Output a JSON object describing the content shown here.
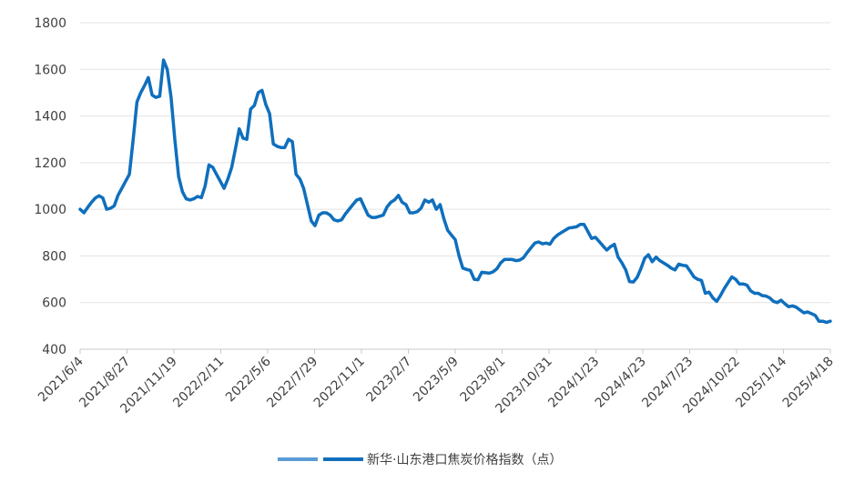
{
  "chart_data": {
    "type": "line",
    "title": "",
    "xlabel": "",
    "ylabel": "",
    "ylim": [
      400,
      1800
    ],
    "yticks": [
      "400",
      "600",
      "800",
      "1000",
      "1200",
      "1400",
      "1600",
      "1800"
    ],
    "xtick_labels": [
      "2021/6/4",
      "2021/8/27",
      "2021/11/19",
      "2022/2/11",
      "2022/5/6",
      "2022/7/29",
      "2022/11/1",
      "2023/2/7",
      "2023/5/9",
      "2023/8/1",
      "2023/10/31",
      "2024/1/23",
      "2024/4/23",
      "2024/7/23",
      "2024/10/22",
      "2025/1/14",
      "2025/4/18"
    ],
    "grid": true,
    "legend_position": "bottom-center",
    "series": [
      {
        "name": "新华·山东港口焦炭价格指数（点）",
        "color": "#0f6fbd",
        "values": [
          1000,
          985,
          1008,
          1030,
          1048,
          1058,
          1048,
          1000,
          1004,
          1015,
          1060,
          1090,
          1120,
          1150,
          1300,
          1460,
          1500,
          1530,
          1565,
          1490,
          1480,
          1485,
          1640,
          1600,
          1480,
          1300,
          1140,
          1075,
          1045,
          1040,
          1045,
          1055,
          1050,
          1100,
          1190,
          1180,
          1150,
          1120,
          1090,
          1130,
          1180,
          1260,
          1345,
          1305,
          1300,
          1430,
          1445,
          1500,
          1510,
          1450,
          1410,
          1280,
          1270,
          1265,
          1265,
          1300,
          1290,
          1150,
          1130,
          1090,
          1020,
          950,
          930,
          975,
          985,
          985,
          975,
          955,
          950,
          955,
          980,
          1000,
          1020,
          1040,
          1045,
          1010,
          975,
          965,
          965,
          970,
          975,
          1010,
          1030,
          1040,
          1060,
          1030,
          1020,
          985,
          985,
          990,
          1005,
          1040,
          1030,
          1040,
          1000,
          1020,
          960,
          910,
          890,
          870,
          800,
          748,
          742,
          738,
          700,
          698,
          730,
          728,
          726,
          732,
          745,
          770,
          785,
          785,
          785,
          780,
          782,
          792,
          815,
          835,
          855,
          860,
          852,
          855,
          850,
          875,
          890,
          900,
          910,
          920,
          922,
          925,
          935,
          935,
          905,
          875,
          880,
          862,
          843,
          825,
          840,
          850,
          795,
          770,
          740,
          690,
          688,
          708,
          745,
          790,
          805,
          775,
          795,
          780,
          770,
          760,
          748,
          740,
          765,
          760,
          758,
          735,
          710,
          700,
          695,
          640,
          645,
          620,
          605,
          630,
          660,
          685,
          710,
          700,
          680,
          680,
          675,
          650,
          640,
          640,
          630,
          628,
          620,
          605,
          600,
          610,
          595,
          582,
          586,
          580,
          568,
          556,
          560,
          553,
          545,
          520,
          520,
          515,
          520
        ]
      }
    ]
  }
}
